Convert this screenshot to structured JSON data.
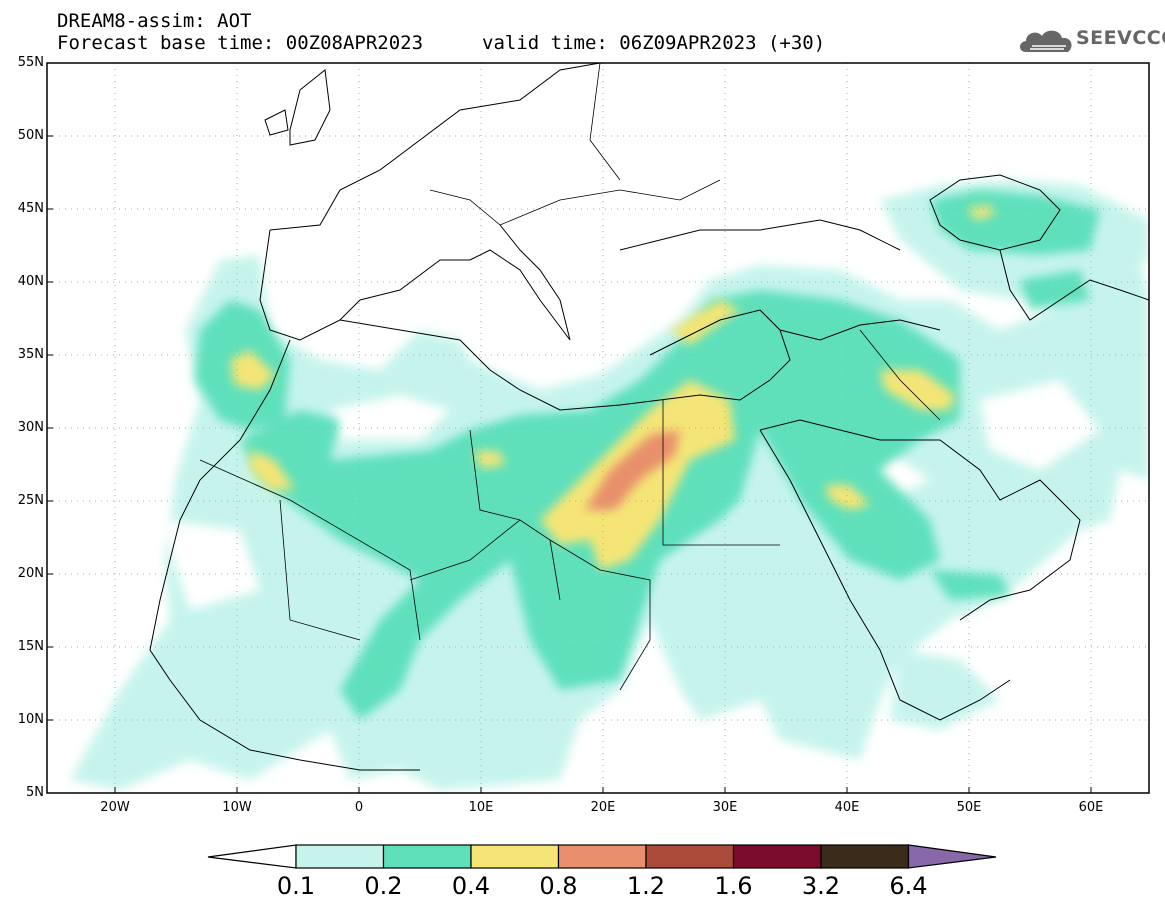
{
  "header": {
    "title_line1": "DREAM8-assim: AOT",
    "title_line2": "Forecast base time: 00Z08APR2023",
    "valid_time": "valid time: 06Z09APR2023 (+30)"
  },
  "logo": {
    "text": "SEEVCCC",
    "icon": "cloud-icon"
  },
  "map": {
    "lon_range": [
      -25,
      65
    ],
    "lat_range": [
      5,
      55
    ],
    "lat_labels": [
      "55N",
      "50N",
      "45N",
      "40N",
      "35N",
      "30N",
      "25N",
      "20N",
      "15N",
      "10N",
      "5N"
    ],
    "lon_labels": [
      "20W",
      "10W",
      "0",
      "10E",
      "20E",
      "30E",
      "40E",
      "50E",
      "60E"
    ]
  },
  "colorbar": {
    "levels": [
      "0.1",
      "0.2",
      "0.4",
      "0.8",
      "1.2",
      "1.6",
      "3.2",
      "6.4"
    ],
    "colors": [
      "#ffffff",
      "#c6f4ec",
      "#5fe0bb",
      "#f5e576",
      "#e8906c",
      "#ab4c3b",
      "#7c0c2c",
      "#3b2b1b",
      "#8868a8"
    ]
  }
}
